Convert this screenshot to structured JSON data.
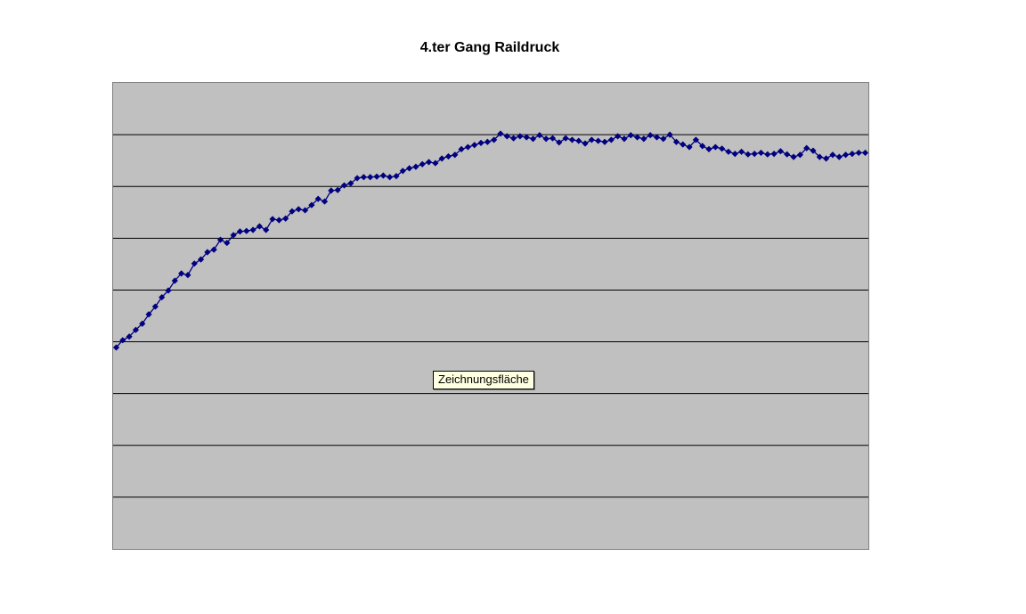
{
  "chart_data": {
    "type": "line",
    "title": "4.ter Gang Raildruck",
    "xlabel": "",
    "ylabel": "",
    "x_axis_tick_labels": [],
    "y_axis_tick_labels": [],
    "legend": "none",
    "ylim_gridline_units": [
      0,
      9
    ],
    "gridlines": {
      "horizontal_count": 8,
      "color": "#000000"
    },
    "series": [
      {
        "marker": "diamond",
        "color": "#000080",
        "y_gridline_units": [
          3.89,
          4.03,
          4.1,
          4.23,
          4.35,
          4.53,
          4.68,
          4.86,
          4.99,
          5.18,
          5.32,
          5.29,
          5.51,
          5.59,
          5.73,
          5.78,
          5.97,
          5.91,
          6.06,
          6.13,
          6.14,
          6.16,
          6.23,
          6.16,
          6.37,
          6.35,
          6.38,
          6.52,
          6.56,
          6.54,
          6.64,
          6.76,
          6.71,
          6.92,
          6.93,
          7.02,
          7.06,
          7.16,
          7.18,
          7.18,
          7.19,
          7.21,
          7.18,
          7.2,
          7.3,
          7.35,
          7.38,
          7.43,
          7.47,
          7.45,
          7.54,
          7.58,
          7.61,
          7.72,
          7.76,
          7.8,
          7.84,
          7.86,
          7.9,
          8.02,
          7.97,
          7.93,
          7.97,
          7.95,
          7.92,
          7.99,
          7.92,
          7.93,
          7.85,
          7.93,
          7.9,
          7.88,
          7.83,
          7.9,
          7.88,
          7.86,
          7.9,
          7.97,
          7.92,
          7.99,
          7.95,
          7.92,
          7.99,
          7.95,
          7.92,
          8.0,
          7.86,
          7.81,
          7.76,
          7.9,
          7.78,
          7.72,
          7.76,
          7.73,
          7.67,
          7.63,
          7.67,
          7.62,
          7.63,
          7.65,
          7.62,
          7.63,
          7.68,
          7.62,
          7.57,
          7.61,
          7.74,
          7.69,
          7.57,
          7.54,
          7.61,
          7.57,
          7.61,
          7.63,
          7.65,
          7.65
        ]
      }
    ]
  },
  "tooltip": {
    "text": "Zeichnungsfläche"
  },
  "colors": {
    "series": "#000080",
    "plot_bg": "#c0c0c0",
    "gridline": "#000000",
    "plot_border": "#808080",
    "tooltip_bg": "#ffffe1",
    "canvas_bg": "#ffffff"
  }
}
